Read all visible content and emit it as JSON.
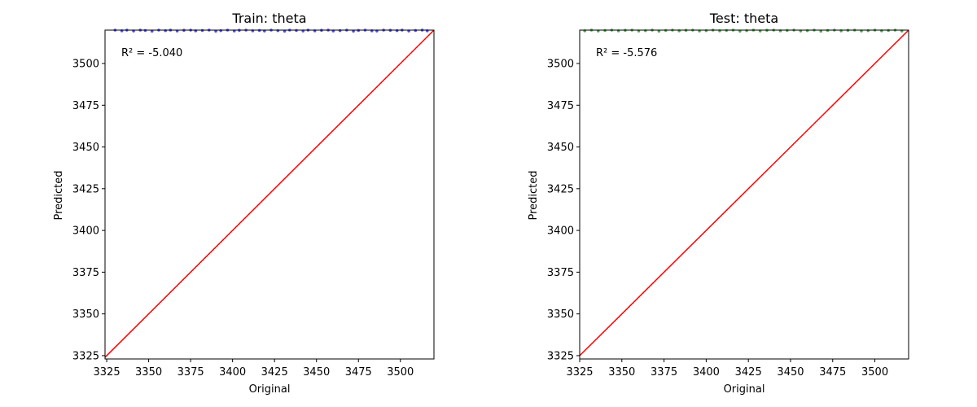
{
  "chart_data": [
    {
      "type": "scatter",
      "title": "Train: theta",
      "xlabel": "Original",
      "ylabel": "Predicted",
      "annotation": "R² = -5.040",
      "xlim": [
        3324,
        3520
      ],
      "ylim": [
        3323,
        3520
      ],
      "xticks": [
        3325,
        3350,
        3375,
        3400,
        3425,
        3450,
        3475,
        3500
      ],
      "yticks": [
        3325,
        3350,
        3375,
        3400,
        3425,
        3450,
        3475,
        3500
      ],
      "grid": false,
      "point_color": "#0000ff",
      "reference_line": {
        "from": [
          3324,
          3324
        ],
        "to": [
          3520,
          3520
        ],
        "color": "#ff0000"
      },
      "series": [
        {
          "x": [
            3330,
            3334,
            3337,
            3341,
            3345,
            3348,
            3352,
            3356,
            3360,
            3363,
            3367,
            3371,
            3375,
            3378,
            3382,
            3386,
            3390,
            3393,
            3397,
            3401,
            3404,
            3408,
            3412,
            3416,
            3419,
            3423,
            3427,
            3431,
            3434,
            3438,
            3442,
            3445,
            3449,
            3453,
            3457,
            3460,
            3464,
            3468,
            3472,
            3475,
            3479,
            3483,
            3486,
            3490,
            3494,
            3498,
            3501,
            3505,
            3509,
            3513,
            3516
          ],
          "y": [
            3520,
            3519.6,
            3520,
            3519.5,
            3520,
            3519.8,
            3519.4,
            3520,
            3519.7,
            3520,
            3519.5,
            3519.9,
            3520,
            3519.6,
            3519.8,
            3520,
            3519.4,
            3519.7,
            3520,
            3519.5,
            3519.9,
            3520,
            3519.6,
            3519.8,
            3519.5,
            3520,
            3519.7,
            3519.4,
            3520,
            3519.8,
            3519.5,
            3520,
            3519.6,
            3519.9,
            3520,
            3519.5,
            3519.7,
            3520,
            3519.4,
            3519.8,
            3520,
            3519.6,
            3519.5,
            3520,
            3519.9,
            3519.7,
            3520,
            3519.5,
            3519.8,
            3520,
            3519.6
          ]
        }
      ]
    },
    {
      "type": "scatter",
      "title": "Test: theta",
      "xlabel": "Original",
      "ylabel": "Predicted",
      "annotation": "R² = -5.576",
      "xlim": [
        3325,
        3520
      ],
      "ylim": [
        3323,
        3520
      ],
      "xticks": [
        3325,
        3350,
        3375,
        3400,
        3425,
        3450,
        3475,
        3500
      ],
      "yticks": [
        3325,
        3350,
        3375,
        3400,
        3425,
        3450,
        3475,
        3500
      ],
      "grid": false,
      "point_color": "#008000",
      "reference_line": {
        "from": [
          3325,
          3325
        ],
        "to": [
          3520,
          3520
        ],
        "color": "#ff0000"
      },
      "series": [
        {
          "x": [
            3328,
            3332,
            3336,
            3340,
            3344,
            3348,
            3352,
            3356,
            3360,
            3364,
            3368,
            3372,
            3376,
            3380,
            3384,
            3388,
            3392,
            3396,
            3400,
            3404,
            3408,
            3412,
            3416,
            3420,
            3424,
            3428,
            3432,
            3436,
            3440,
            3444,
            3448,
            3452,
            3456,
            3460,
            3464,
            3468,
            3472,
            3476,
            3480,
            3484,
            3488,
            3492,
            3496,
            3500,
            3504,
            3508,
            3512,
            3516
          ],
          "y": [
            3519.6,
            3520,
            3519.5,
            3519.8,
            3520,
            3519.6,
            3519.9,
            3520,
            3519.5,
            3519.7,
            3520,
            3519.4,
            3519.8,
            3520,
            3519.6,
            3519.9,
            3520,
            3519.5,
            3519.7,
            3520,
            3519.6,
            3519.8,
            3520,
            3519.4,
            3519.7,
            3520,
            3519.5,
            3519.9,
            3520,
            3519.6,
            3519.8,
            3520,
            3519.5,
            3519.7,
            3520,
            3519.4,
            3519.8,
            3520,
            3519.6,
            3519.9,
            3520,
            3519.5,
            3519.7,
            3520,
            3519.6,
            3519.8,
            3520,
            3519.5
          ]
        }
      ]
    }
  ]
}
